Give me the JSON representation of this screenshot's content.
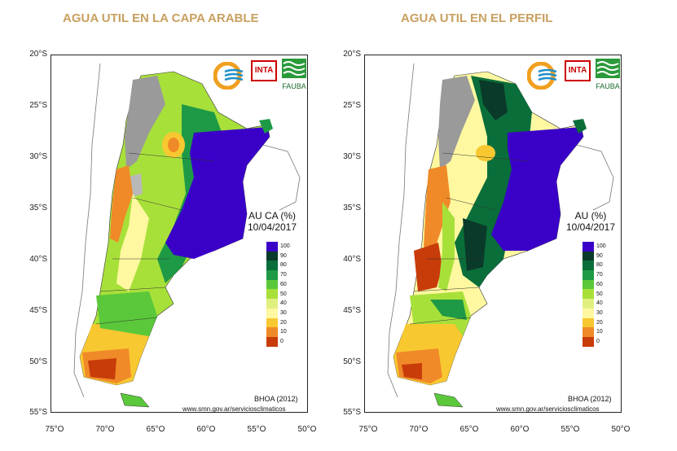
{
  "panels": [
    {
      "title": "AGUA UTIL EN LA CAPA ARABLE",
      "legend_title": "AU CA (%)",
      "date": "10/04/2017",
      "model": "BHOA (2012)",
      "source": "www.smn.gov.ar/serviciosclimaticos"
    },
    {
      "title": "AGUA UTIL EN EL PERFIL",
      "legend_title": "AU (%)",
      "date": "10/04/2017",
      "model": "BHOA (2012)",
      "source": "www.smn.gov.ar/serviciosclimaticos"
    }
  ],
  "lat_ticks": [
    "20°S",
    "25°S",
    "30°S",
    "35°S",
    "40°S",
    "45°S",
    "50°S",
    "55°S"
  ],
  "lon_ticks": [
    "75°O",
    "70°O",
    "65°O",
    "60°O",
    "55°O",
    "50°O"
  ],
  "legend": {
    "labels": [
      "100",
      "90",
      "80",
      "70",
      "60",
      "50",
      "40",
      "30",
      "20",
      "10",
      "0"
    ],
    "colors": [
      "#3a00c8",
      "#0a3a2a",
      "#0a6e3a",
      "#1e9a46",
      "#5ac83a",
      "#a8e03a",
      "#e0f080",
      "#fff8a0",
      "#f8c830",
      "#f08a28",
      "#c83c0a"
    ]
  },
  "logos": [
    "INTA",
    "FAUBA"
  ]
}
